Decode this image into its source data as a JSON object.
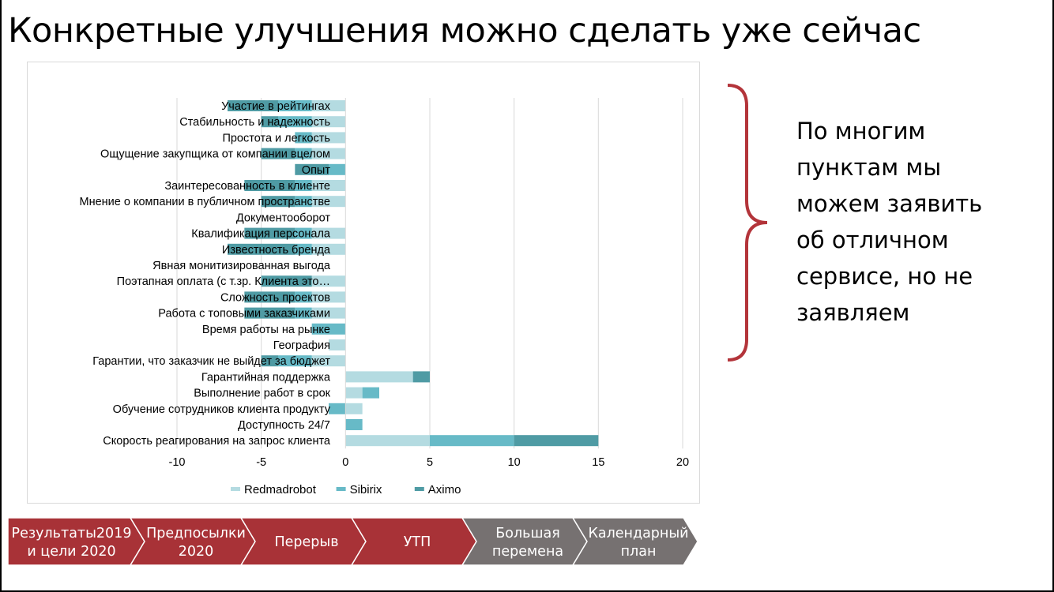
{
  "slide": {
    "title": "Конкретные улучшения можно сделать уже сейчас",
    "callout_lines": [
      "По многим",
      "пунктам мы",
      "можем заявить",
      "об отличном",
      "сервисе, но не",
      "заявляем"
    ]
  },
  "chart_data": {
    "type": "bar",
    "orientation": "horizontal",
    "stacked": true,
    "categories": [
      "Участие в рейтингах",
      "Стабильность и надежность",
      "Простота и легкость",
      "Ощущение закупщика от компании вцелом",
      "Опыт",
      "Заинтересованность в клиенте",
      "Мнение о компании в публичном пространстве",
      "Документооборот",
      "Квалификация персонала",
      "Известность бренда",
      "Явная монитизированная выгода",
      "Поэтапная оплата (с т.зр. Клиента это…",
      "Сложность проектов",
      "Работа с топовыми заказчиками",
      "Время работы на рынке",
      "География",
      "Гарантии, что заказчик не выйдет за бюджет",
      "Гарантийная поддержка",
      "Выполнение работ в срок",
      "Обучение сотрудников клиента продукту",
      "Доступность 24/7",
      "Скорость реагирования на запрос клиента"
    ],
    "series": [
      {
        "name": "Redmadrobot",
        "color": "#b4dbe1",
        "values": [
          -2,
          -2,
          -2,
          -2,
          0,
          -2,
          -2,
          0,
          -2,
          -2,
          0,
          -2,
          -2,
          -2,
          0,
          -1,
          -2,
          4,
          1,
          1,
          0,
          5
        ]
      },
      {
        "name": "Sibirix",
        "color": "#67bac7",
        "values": [
          -2,
          -2,
          -1,
          -1,
          -1,
          -1,
          -1,
          0,
          -1,
          -1,
          0,
          0,
          -1,
          -1,
          -2,
          0,
          -2,
          0,
          1,
          -1,
          1,
          5
        ]
      },
      {
        "name": "Aximo",
        "color": "#4f9ba4",
        "values": [
          -3,
          -1,
          0,
          -2,
          -2,
          -3,
          -2,
          0,
          -3,
          -4,
          0,
          -3,
          -3,
          -3,
          0,
          0,
          -1,
          1,
          0,
          0,
          0,
          5
        ]
      }
    ],
    "xlim": [
      -10,
      20
    ],
    "xticks": [
      -10,
      -5,
      0,
      5,
      10,
      15,
      20
    ],
    "grid": true,
    "legend_position": "bottom"
  },
  "nav": {
    "steps": [
      {
        "lines": [
          "Результаты2019",
          "и цели 2020"
        ],
        "state": "done"
      },
      {
        "lines": [
          "Предпосылки",
          "2020"
        ],
        "state": "done"
      },
      {
        "lines": [
          "Перерыв"
        ],
        "state": "done"
      },
      {
        "lines": [
          "УТП"
        ],
        "state": "done"
      },
      {
        "lines": [
          "Большая",
          "перемена"
        ],
        "state": "todo"
      },
      {
        "lines": [
          "Календарный",
          "план"
        ],
        "state": "todo"
      }
    ]
  },
  "colors": {
    "nav_done": "#a83237",
    "nav_todo": "#767171",
    "brace": "#b3343a",
    "gridline": "#d9d9d9"
  }
}
